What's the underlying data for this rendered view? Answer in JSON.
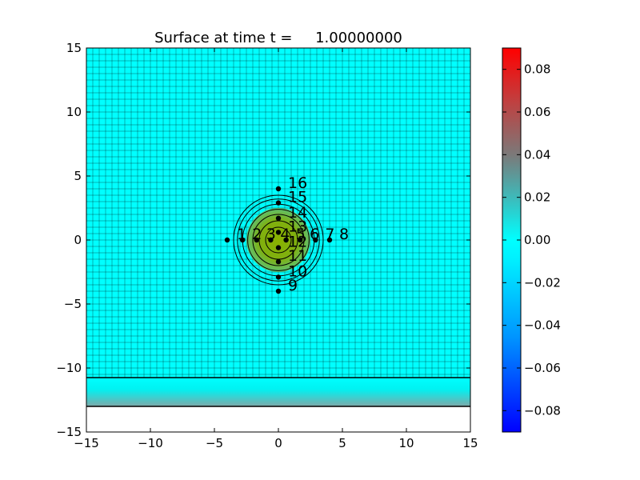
{
  "chart_data": {
    "type": "heatmap",
    "title": "Surface at time t =     1.00000000",
    "xlim": [
      -15,
      15
    ],
    "ylim": [
      -15,
      15
    ],
    "x_ticks": [
      -15,
      -10,
      -5,
      0,
      5,
      10,
      15
    ],
    "y_ticks": [
      -15,
      -10,
      -5,
      0,
      5,
      10,
      15
    ],
    "x_tick_labels": [
      "−15",
      "−10",
      "−5",
      "0",
      "5",
      "10",
      "15"
    ],
    "y_tick_labels": [
      "−15",
      "−10",
      "−5",
      "0",
      "5",
      "10",
      "15"
    ],
    "grid": true,
    "grid_cell_size": 0.5,
    "background_value": 0.0,
    "domain_bottom": -13,
    "shelf_line_y": -10.75,
    "bump": {
      "center": [
        0,
        0
      ],
      "radius": 2.5,
      "contour_radii": [
        1.0,
        1.5,
        2.0,
        2.4,
        2.8,
        3.2,
        3.5
      ],
      "color_value": 0.045
    },
    "colorbar": {
      "range": [
        -0.09,
        0.09
      ],
      "ticks": [
        0.08,
        0.06,
        0.04,
        0.02,
        0.0,
        -0.02,
        -0.04,
        -0.06,
        -0.08
      ],
      "tick_labels": [
        "0.08",
        "0.06",
        "0.04",
        "0.02",
        "0.00",
        "−0.02",
        "−0.04",
        "−0.06",
        "−0.08"
      ],
      "colors": {
        "min": "#0000ff",
        "low": "#00c8ff",
        "mid": "#00ffff",
        "high": "#3caaaa",
        "upper": "#7d7d7d",
        "max": "#ff0000"
      }
    },
    "gauges": [
      {
        "label": "1",
        "x": -4.0,
        "y": 0
      },
      {
        "label": "2",
        "x": -2.8,
        "y": 0
      },
      {
        "label": "3",
        "x": -1.7,
        "y": 0
      },
      {
        "label": "4",
        "x": -0.6,
        "y": 0
      },
      {
        "label": "5",
        "x": 0.6,
        "y": 0
      },
      {
        "label": "6",
        "x": 1.7,
        "y": 0
      },
      {
        "label": "7",
        "x": 2.9,
        "y": 0
      },
      {
        "label": "8",
        "x": 4.0,
        "y": 0
      },
      {
        "label": "9",
        "x": 0,
        "y": -4.0
      },
      {
        "label": "10",
        "x": 0,
        "y": -2.9
      },
      {
        "label": "11",
        "x": 0,
        "y": -1.7
      },
      {
        "label": "12",
        "x": 0,
        "y": -0.6
      },
      {
        "label": "13",
        "x": 0,
        "y": 0.6
      },
      {
        "label": "14",
        "x": 0,
        "y": 1.7
      },
      {
        "label": "15",
        "x": 0,
        "y": 2.9
      },
      {
        "label": "16",
        "x": 0,
        "y": 4.0
      }
    ]
  }
}
